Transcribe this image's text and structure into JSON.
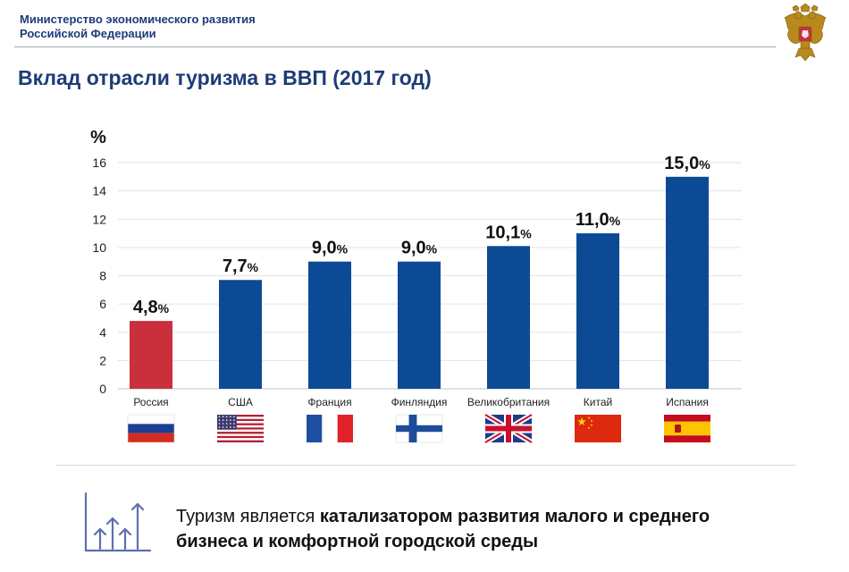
{
  "header": {
    "org_line1": "Министерство экономического развития",
    "org_line2": "Российской Федерации"
  },
  "title": "Вклад отрасли туризма в ВВП (2017 год)",
  "chart_data": {
    "type": "bar",
    "title": "Вклад отрасли туризма в ВВП (2017 год)",
    "ylabel": "%",
    "xlabel": "",
    "ylim": [
      0,
      16
    ],
    "yticks": [
      0,
      2,
      4,
      6,
      8,
      10,
      12,
      14,
      16
    ],
    "grid": true,
    "categories": [
      "Россия",
      "США",
      "Франция",
      "Финляндия",
      "Великобритания",
      "Китай",
      "Испания"
    ],
    "values": [
      4.8,
      7.7,
      9.0,
      9.0,
      10.1,
      11.0,
      15.0
    ],
    "value_labels": [
      "4,8",
      "7,7",
      "9,0",
      "9,0",
      "10,1",
      "11,0",
      "15,0"
    ],
    "value_unit": "%",
    "colors": [
      "#c9303c",
      "#0d4a96",
      "#0d4a96",
      "#0d4a96",
      "#0d4a96",
      "#0d4a96",
      "#0d4a96"
    ],
    "flags": [
      "russia-flag",
      "usa-flag",
      "france-flag",
      "finland-flag",
      "uk-flag",
      "china-flag",
      "spain-flag"
    ]
  },
  "bottom": {
    "text_regular": "Туризм является ",
    "text_bold_1": "катализатором развития малого и среднего",
    "text_bold_2": "бизнеса и комфортной городской среды",
    "icon": "growth-arrows-icon"
  }
}
